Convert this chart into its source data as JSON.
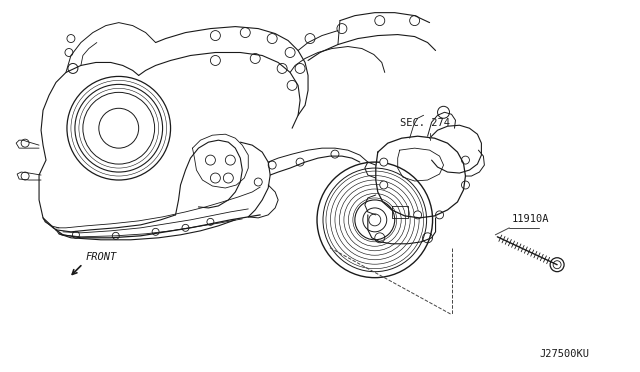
{
  "background_color": "#ffffff",
  "fig_width": 6.4,
  "fig_height": 3.72,
  "dpi": 100,
  "label_sec274": "SEC. 274",
  "label_11910A": "11910A",
  "label_front": "FRONT",
  "label_code": "J27500KU",
  "text_color": "#1a1a1a",
  "line_color": "#1a1a1a",
  "line_width": 0.7
}
